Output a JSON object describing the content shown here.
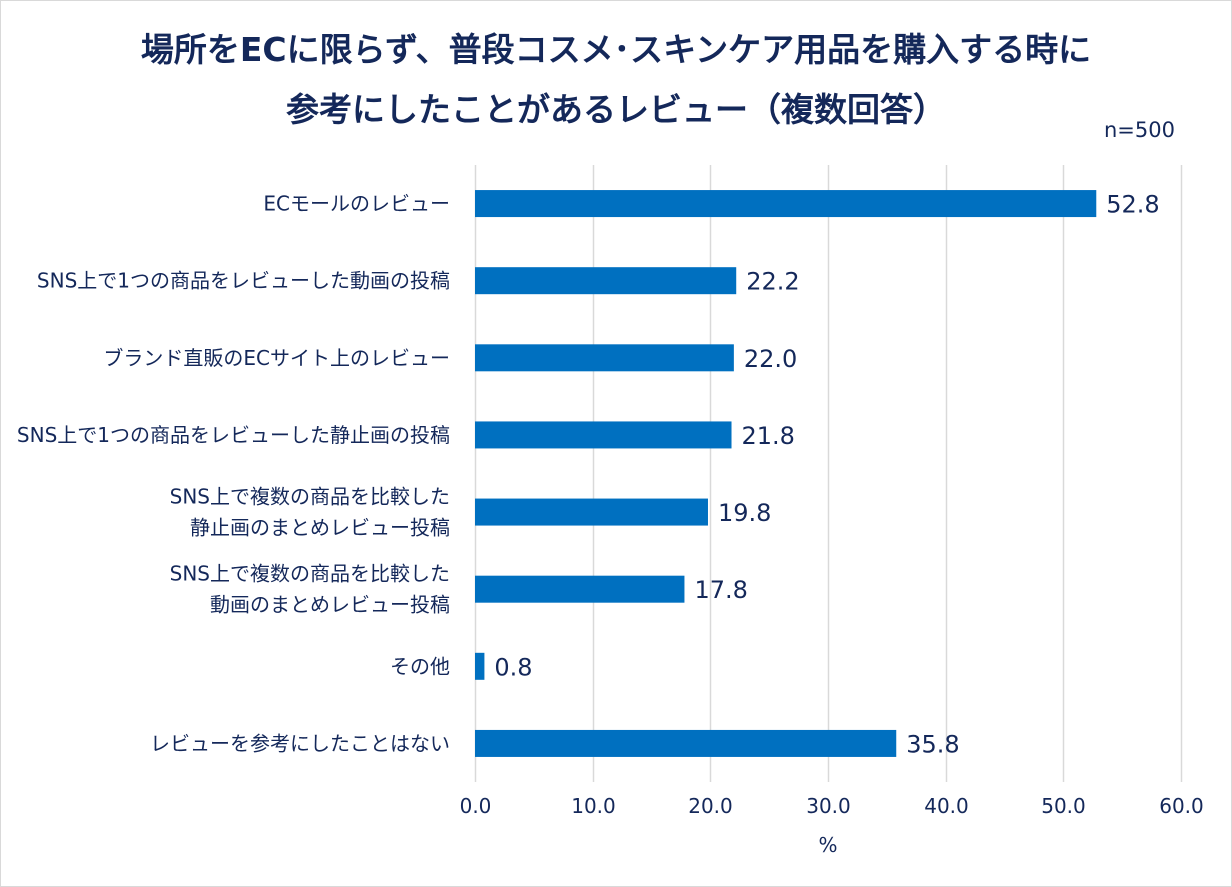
{
  "chart_data": {
    "type": "bar",
    "orientation": "horizontal",
    "title_lines": [
      "場所をECに限らず、普段コスメ･スキンケア用品を購入する時に",
      "参考にしたことがあるレビュー（複数回答）"
    ],
    "note": "n=500",
    "categories": [
      [
        "ECモールのレビュー"
      ],
      [
        "SNS上で1つの商品をレビューした動画の投稿"
      ],
      [
        "ブランド直販のECサイト上のレビュー"
      ],
      [
        "SNS上で1つの商品をレビューした静止画の投稿"
      ],
      [
        "SNS上で複数の商品を比較した",
        "静止画のまとめレビュー投稿"
      ],
      [
        "SNS上で複数の商品を比較した",
        "動画のまとめレビュー投稿"
      ],
      [
        "その他"
      ],
      [
        "レビューを参考にしたことはない"
      ]
    ],
    "values": [
      52.8,
      22.2,
      22.0,
      21.8,
      19.8,
      17.8,
      0.8,
      35.8
    ],
    "value_labels": [
      "52.8",
      "22.2",
      "22.0",
      "21.8",
      "19.8",
      "17.8",
      "0.8",
      "35.8"
    ],
    "xlim": [
      0,
      60
    ],
    "xticks": [
      "0.0",
      "10.0",
      "20.0",
      "30.0",
      "40.0",
      "50.0",
      "60.0"
    ],
    "xlabel": "%",
    "grid": true,
    "bar_color": "#0070c0",
    "grid_color": "#d9d9d9",
    "text_color": "#14285a"
  }
}
